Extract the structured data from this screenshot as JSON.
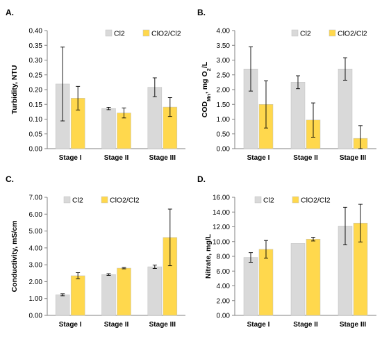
{
  "colors": {
    "cl2": "#d9d9d9",
    "clo2": "#ffd84d",
    "bar_edge": "#333333",
    "axis": "#808080"
  },
  "chart_data": [
    {
      "type": "bar",
      "panel": "A.",
      "ylabel": "Turbidity, NTU",
      "ylabel_parts": [
        {
          "t": "Turbidity, NTU",
          "s": "n"
        }
      ],
      "categories": [
        "Stage I",
        "Stage II",
        "Stage III"
      ],
      "ylim": [
        0,
        0.4
      ],
      "yticks": [
        "0.00",
        "0.05",
        "0.10",
        "0.15",
        "0.20",
        "0.25",
        "0.30",
        "0.35",
        "0.40"
      ],
      "grid": false,
      "legend": "top-right",
      "series": [
        {
          "name": "Cl2",
          "values": [
            0.219,
            0.136,
            0.208
          ],
          "errors": [
            0.125,
            0.004,
            0.032
          ]
        },
        {
          "name": "ClO2/Cl2",
          "values": [
            0.171,
            0.121,
            0.141
          ],
          "errors": [
            0.04,
            0.017,
            0.032
          ]
        }
      ]
    },
    {
      "type": "bar",
      "panel": "B.",
      "ylabel": "CODMn, mg O2/L",
      "ylabel_parts": [
        {
          "t": "COD",
          "s": "n"
        },
        {
          "t": "Mn",
          "s": "sub"
        },
        {
          "t": ", mg O",
          "s": "n"
        },
        {
          "t": "2",
          "s": "sub"
        },
        {
          "t": "/L",
          "s": "n"
        }
      ],
      "categories": [
        "Stage I",
        "Stage II",
        "Stage III"
      ],
      "ylim": [
        0,
        4
      ],
      "yticks": [
        "0.00",
        "0.50",
        "1.00",
        "1.50",
        "2.00",
        "2.50",
        "3.00",
        "3.50",
        "4.00"
      ],
      "grid": false,
      "legend": "top-right",
      "series": [
        {
          "name": "Cl2",
          "values": [
            2.7,
            2.25,
            2.7
          ],
          "errors": [
            0.75,
            0.22,
            0.38
          ]
        },
        {
          "name": "ClO2/Cl2",
          "values": [
            1.5,
            0.97,
            0.35
          ],
          "errors": [
            0.8,
            0.58,
            0.43
          ]
        }
      ]
    },
    {
      "type": "bar",
      "panel": "C.",
      "ylabel": "Conductivity, mS/cm",
      "ylabel_parts": [
        {
          "t": "Conductivity, mS/cm",
          "s": "n"
        }
      ],
      "categories": [
        "Stage I",
        "Stage II",
        "Stage III"
      ],
      "ylim": [
        0,
        7
      ],
      "yticks": [
        "0.00",
        "1.00",
        "2.00",
        "3.00",
        "4.00",
        "5.00",
        "6.00",
        "7.00"
      ],
      "grid": false,
      "legend": "top-right",
      "series": [
        {
          "name": "Cl2",
          "values": [
            1.22,
            2.42,
            2.88
          ],
          "errors": [
            0.06,
            0.05,
            0.1
          ]
        },
        {
          "name": "ClO2/Cl2",
          "values": [
            2.35,
            2.8,
            4.62
          ],
          "errors": [
            0.18,
            0.04,
            1.68
          ]
        }
      ]
    },
    {
      "type": "bar",
      "panel": "D.",
      "ylabel": "Nitrate, mg/L",
      "ylabel_parts": [
        {
          "t": "Nitrate, mg/L",
          "s": "n"
        }
      ],
      "categories": [
        "Stage I",
        "Stage II",
        "Stage III"
      ],
      "ylim": [
        0,
        16
      ],
      "yticks": [
        "0.00",
        "2.00",
        "4.00",
        "6.00",
        "8.00",
        "10.00",
        "12.00",
        "14.00",
        "16.00"
      ],
      "grid": false,
      "legend": "top-left",
      "series": [
        {
          "name": "Cl2",
          "values": [
            7.85,
            9.75,
            12.1
          ],
          "errors": [
            0.65,
            0.0,
            2.55
          ]
        },
        {
          "name": "ClO2/Cl2",
          "values": [
            8.95,
            10.33,
            12.5
          ],
          "errors": [
            1.2,
            0.25,
            2.55
          ]
        }
      ]
    }
  ]
}
